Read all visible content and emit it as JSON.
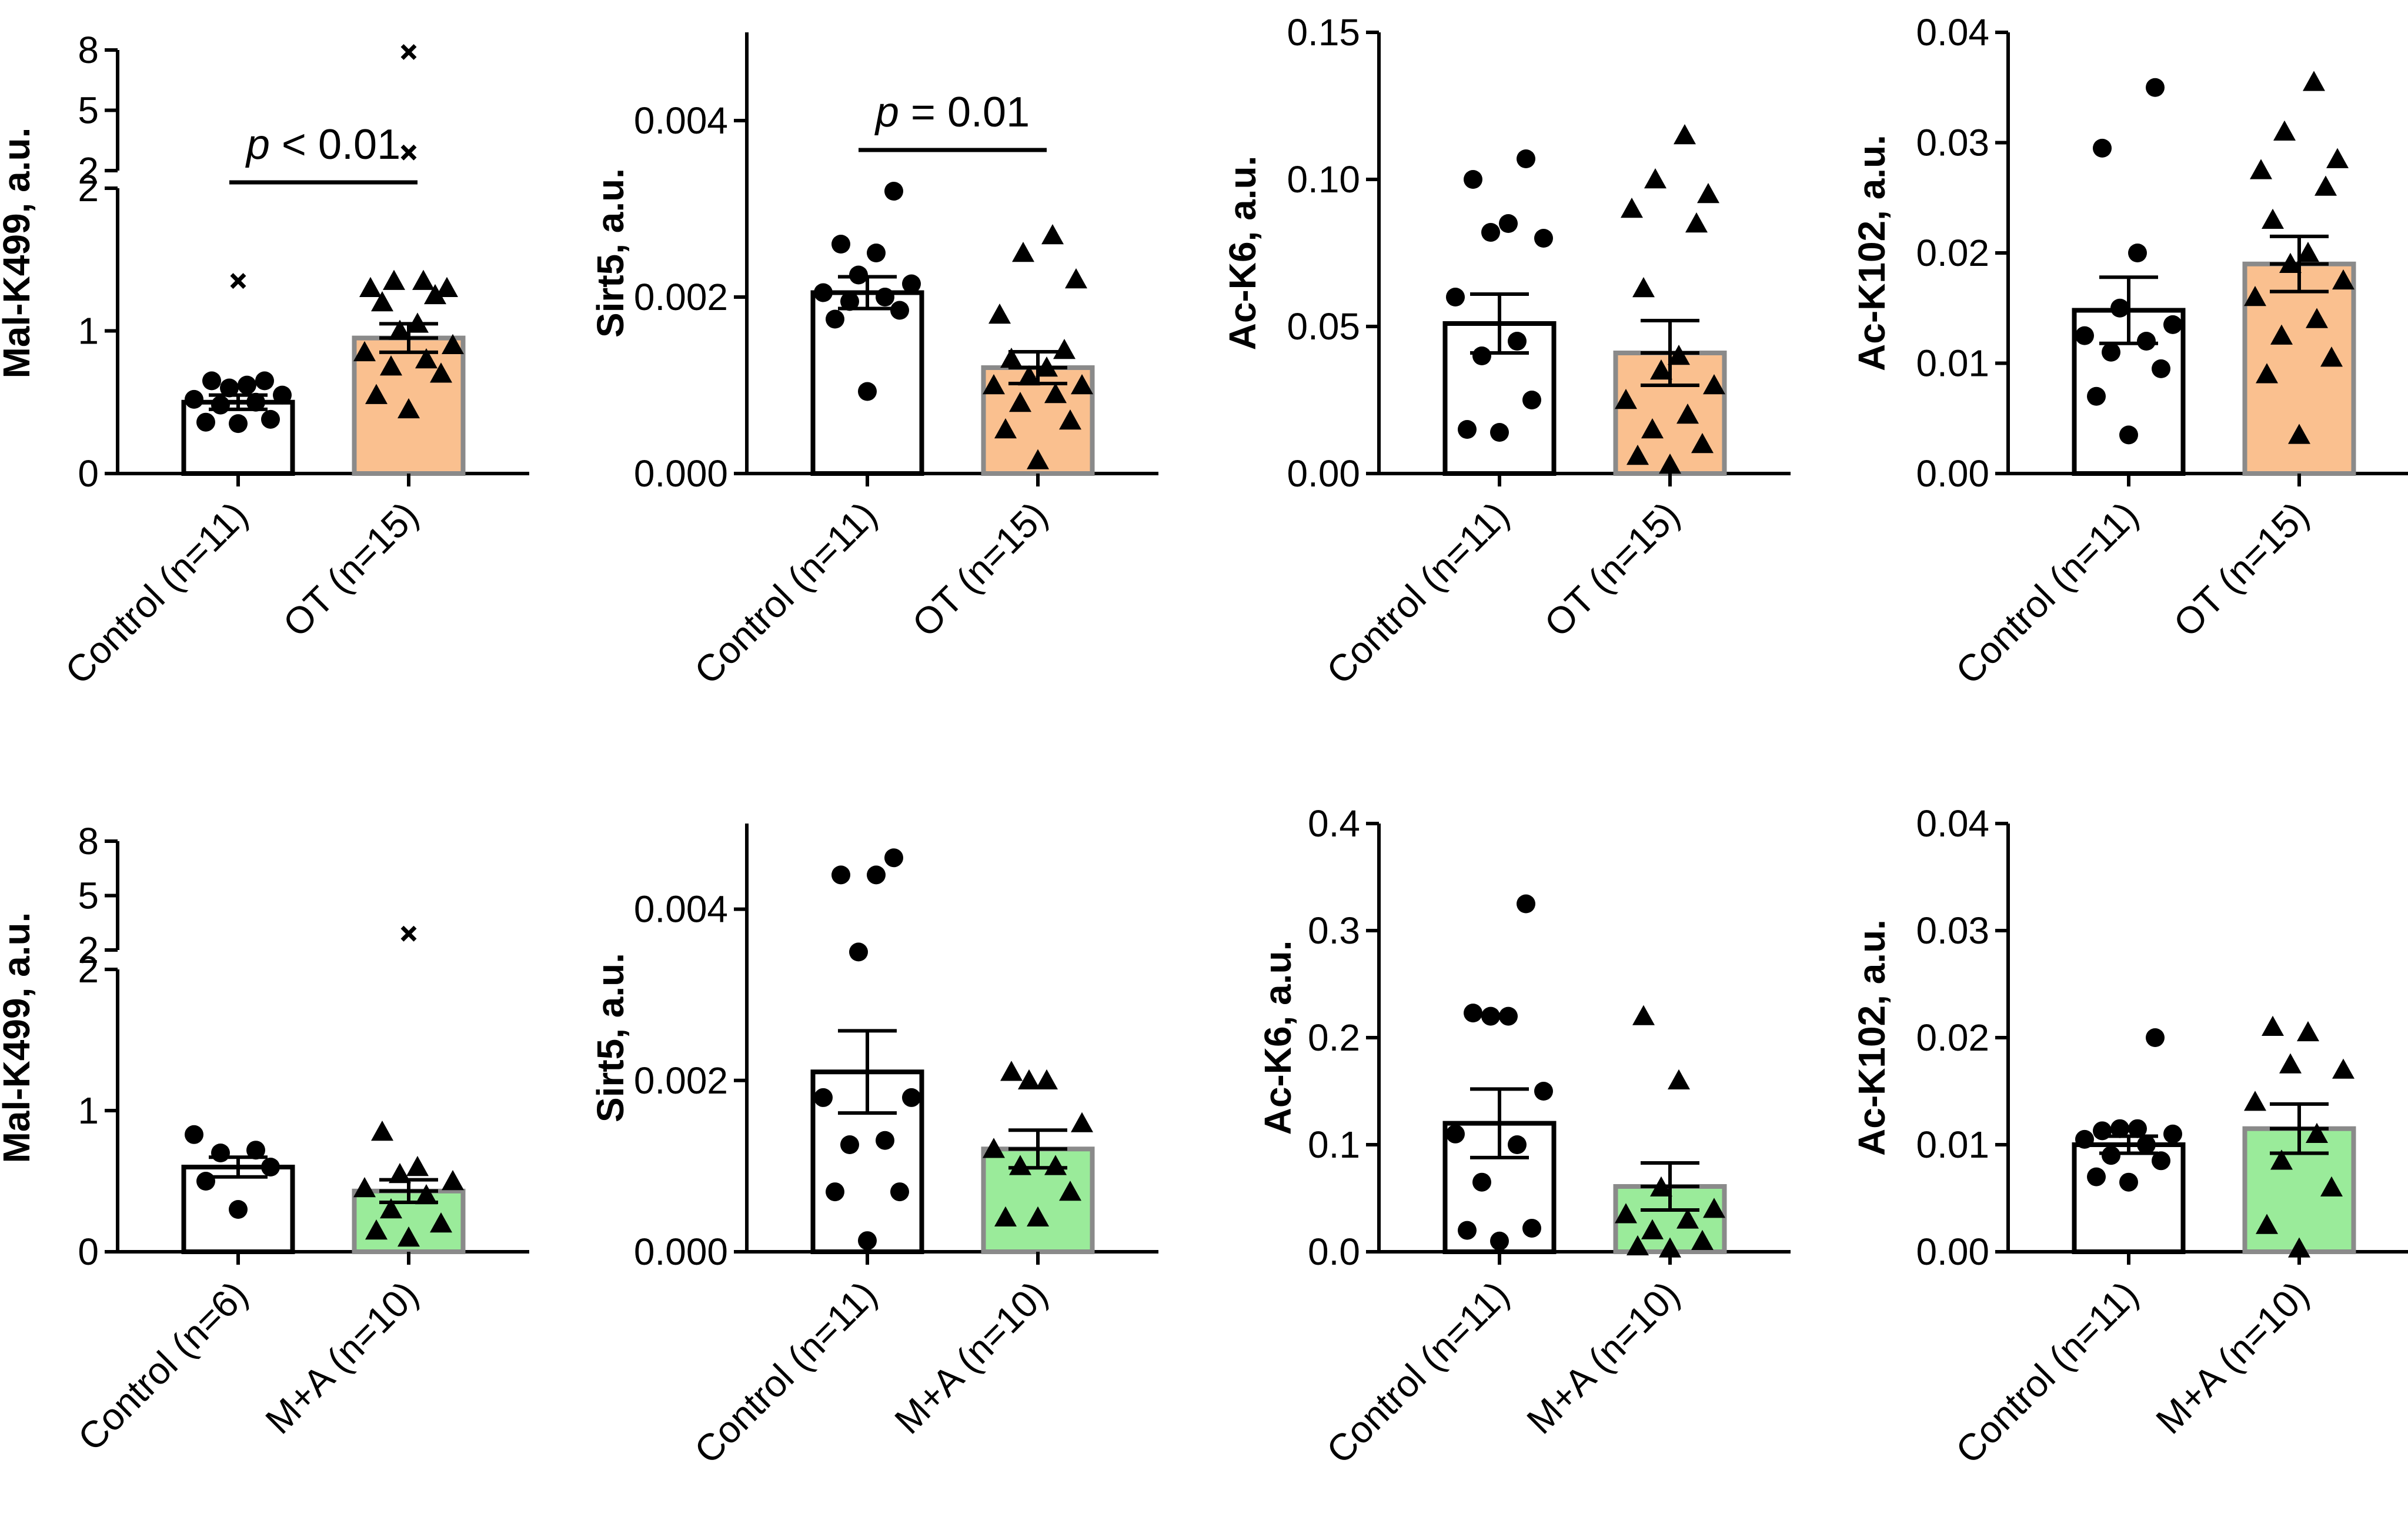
{
  "figure": {
    "colors": {
      "white": "#ffffff",
      "ot": "#fac08f",
      "ma": "#9aeb9a",
      "axis": "#000000",
      "bar_edge_colored": "#8a8a8a"
    },
    "panels": [
      {
        "row": 0,
        "col": 0
      },
      {
        "row": 0,
        "col": 1
      },
      {
        "row": 0,
        "col": 2
      },
      {
        "row": 0,
        "col": 3
      },
      {
        "row": 1,
        "col": 0
      },
      {
        "row": 1,
        "col": 1
      },
      {
        "row": 1,
        "col": 2
      },
      {
        "row": 1,
        "col": 3
      }
    ]
  },
  "chart_data": [
    {
      "type": "bar",
      "ylabel": "Mal-K499, a.u.",
      "broken_axis": true,
      "ylim_lower": [
        0,
        2
      ],
      "ylim_upper": [
        2,
        8
      ],
      "yticks_lower": [
        "0",
        "1",
        "2"
      ],
      "yticks_upper": [
        "2",
        "5",
        "8"
      ],
      "categories": [
        "Control (n=11)",
        "OT (n=15)"
      ],
      "bar_colors": [
        "#ffffff",
        "#fac08f"
      ],
      "means": [
        0.5,
        0.95
      ],
      "sem": [
        0.05,
        0.1
      ],
      "points": [
        [
          0.35,
          0.36,
          0.38,
          0.48,
          0.5,
          0.52,
          0.55,
          0.6,
          0.62,
          0.65,
          0.65
        ],
        [
          0.45,
          0.55,
          0.7,
          0.75,
          0.8,
          0.85,
          0.9,
          1.0,
          1.05,
          1.2,
          1.25,
          1.3,
          1.3,
          1.35,
          1.35
        ]
      ],
      "outliers": [
        [
          1.35
        ],
        [
          2.9,
          7.9
        ]
      ],
      "annotation": {
        "italic": "p",
        "text": " < 0.01"
      }
    },
    {
      "type": "bar",
      "ylabel": "Sirt5, a.u.",
      "ylim": [
        0,
        0.005
      ],
      "yticks": [
        "0.000",
        "0.002",
        "0.004"
      ],
      "ytick_values": [
        0,
        0.002,
        0.004
      ],
      "categories": [
        "Control (n=11)",
        "OT (n=15)"
      ],
      "bar_colors": [
        "#ffffff",
        "#fac08f"
      ],
      "means": [
        0.00205,
        0.0012
      ],
      "sem": [
        0.00018,
        0.00018
      ],
      "points": [
        [
          0.00093,
          0.00175,
          0.00185,
          0.00195,
          0.002,
          0.00205,
          0.00215,
          0.00225,
          0.0025,
          0.0026,
          0.0032
        ],
        [
          0.00015,
          0.0005,
          0.0006,
          0.0008,
          0.0009,
          0.001,
          0.001,
          0.0011,
          0.0012,
          0.0013,
          0.0014,
          0.0018,
          0.0022,
          0.0025,
          0.0027
        ]
      ],
      "annotation": {
        "italic": "p",
        "text": " = 0.01"
      }
    },
    {
      "type": "bar",
      "ylabel": "Ac-K6, a.u.",
      "ylim": [
        0,
        0.15
      ],
      "yticks": [
        "0.00",
        "0.05",
        "0.10",
        "0.15"
      ],
      "ytick_values": [
        0,
        0.05,
        0.1,
        0.15
      ],
      "categories": [
        "Control (n=11)",
        "OT (n=15)"
      ],
      "bar_colors": [
        "#ffffff",
        "#fac08f"
      ],
      "means": [
        0.051,
        0.041
      ],
      "sem": [
        0.01,
        0.011
      ],
      "points": [
        [
          0.014,
          0.015,
          0.025,
          0.04,
          0.045,
          0.06,
          0.08,
          0.082,
          0.085,
          0.1,
          0.107
        ],
        [
          0.003,
          0.006,
          0.01,
          0.015,
          0.02,
          0.025,
          0.03,
          0.035,
          0.04,
          0.063,
          0.085,
          0.09,
          0.095,
          0.1,
          0.115
        ]
      ]
    },
    {
      "type": "bar",
      "ylabel": "Ac-K102, a.u.",
      "ylim": [
        0,
        0.04
      ],
      "yticks": [
        "0.00",
        "0.01",
        "0.02",
        "0.03",
        "0.04"
      ],
      "ytick_values": [
        0,
        0.01,
        0.02,
        0.03,
        0.04
      ],
      "categories": [
        "Control (n=11)",
        "OT (n=15)"
      ],
      "bar_colors": [
        "#ffffff",
        "#fac08f"
      ],
      "means": [
        0.0148,
        0.019
      ],
      "sem": [
        0.003,
        0.0025
      ],
      "points": [
        [
          0.0035,
          0.007,
          0.0095,
          0.011,
          0.012,
          0.0125,
          0.0135,
          0.015,
          0.02,
          0.0295,
          0.035
        ],
        [
          0.0035,
          0.009,
          0.0105,
          0.0125,
          0.014,
          0.016,
          0.0175,
          0.019,
          0.02,
          0.023,
          0.026,
          0.0275,
          0.0285,
          0.031,
          0.0355
        ]
      ]
    },
    {
      "type": "bar",
      "ylabel": "Mal-K499, a.u.",
      "broken_axis": true,
      "ylim_lower": [
        0,
        2
      ],
      "ylim_upper": [
        2,
        8
      ],
      "yticks_lower": [
        "0",
        "1",
        "2"
      ],
      "yticks_upper": [
        "2",
        "5",
        "8"
      ],
      "categories": [
        "Control (n=6)",
        "M+A (n=10)"
      ],
      "bar_colors": [
        "#ffffff",
        "#9aeb9a"
      ],
      "means": [
        0.6,
        0.43
      ],
      "sem": [
        0.07,
        0.08
      ],
      "points": [
        [
          0.3,
          0.5,
          0.6,
          0.7,
          0.72,
          0.83
        ],
        [
          0.1,
          0.15,
          0.2,
          0.3,
          0.4,
          0.45,
          0.5,
          0.55,
          0.6,
          0.85
        ]
      ],
      "outliers": [
        [],
        [
          2.9
        ]
      ]
    },
    {
      "type": "bar",
      "ylabel": "Sirt5, a.u.",
      "ylim": [
        0,
        0.005
      ],
      "yticks": [
        "0.000",
        "0.002",
        "0.004"
      ],
      "ytick_values": [
        0,
        0.002,
        0.004
      ],
      "categories": [
        "Control (n=11)",
        "M+A (n=10)"
      ],
      "bar_colors": [
        "#ffffff",
        "#9aeb9a"
      ],
      "means": [
        0.0021,
        0.0012
      ],
      "sem": [
        0.00048,
        0.00022
      ],
      "points": [
        [
          0.00013,
          0.0007,
          0.0007,
          0.00125,
          0.0013,
          0.0018,
          0.0018,
          0.0035,
          0.0044,
          0.0044,
          0.0046
        ],
        [
          0.0004,
          0.0004,
          0.0007,
          0.001,
          0.001,
          0.0012,
          0.0015,
          0.002,
          0.002,
          0.0021
        ]
      ]
    },
    {
      "type": "bar",
      "ylabel": "Ac-K6, a.u.",
      "ylim": [
        0,
        0.4
      ],
      "yticks": [
        "0.0",
        "0.1",
        "0.2",
        "0.3",
        "0.4"
      ],
      "ytick_values": [
        0,
        0.1,
        0.2,
        0.3,
        0.4
      ],
      "categories": [
        "Control (n=11)",
        "M+A (n=10)"
      ],
      "bar_colors": [
        "#ffffff",
        "#9aeb9a"
      ],
      "means": [
        0.12,
        0.061
      ],
      "sem": [
        0.032,
        0.022
      ],
      "points": [
        [
          0.01,
          0.02,
          0.022,
          0.065,
          0.1,
          0.11,
          0.15,
          0.22,
          0.22,
          0.223,
          0.325
        ],
        [
          0.003,
          0.005,
          0.01,
          0.02,
          0.03,
          0.035,
          0.04,
          0.06,
          0.16,
          0.22
        ]
      ]
    },
    {
      "type": "bar",
      "ylabel": "Ac-K102, a.u.",
      "ylim": [
        0,
        0.04
      ],
      "yticks": [
        "0.00",
        "0.01",
        "0.02",
        "0.03",
        "0.04"
      ],
      "ytick_values": [
        0,
        0.01,
        0.02,
        0.03,
        0.04
      ],
      "categories": [
        "Control (n=11)",
        "M+A (n=10)"
      ],
      "bar_colors": [
        "#ffffff",
        "#9aeb9a"
      ],
      "means": [
        0.01,
        0.0115
      ],
      "sem": [
        0.0008,
        0.0023
      ],
      "points": [
        [
          0.0065,
          0.007,
          0.0085,
          0.009,
          0.01,
          0.0105,
          0.011,
          0.0115,
          0.0115,
          0.0113,
          0.02
        ],
        [
          0.0003,
          0.0025,
          0.006,
          0.0085,
          0.011,
          0.014,
          0.017,
          0.0175,
          0.0205,
          0.021
        ]
      ]
    }
  ]
}
